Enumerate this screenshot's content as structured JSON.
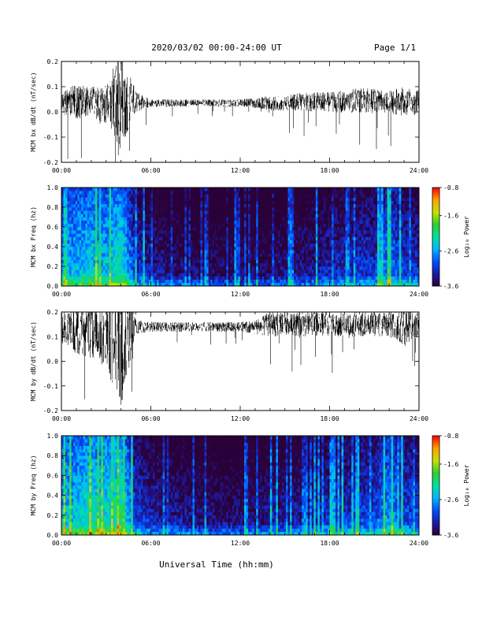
{
  "header": {
    "title": "2020/03/02  00:00-24:00 UT",
    "page_label": "Page 1/1"
  },
  "footer": {
    "xlabel": "Universal Time (hh:mm)"
  },
  "colors": {
    "trace": "#000000",
    "colormap": [
      "#2a0038",
      "#1b1ba8",
      "#0050ff",
      "#00b8ff",
      "#00e0a0",
      "#30d030",
      "#c8e000",
      "#ffa000",
      "#ff0000"
    ]
  },
  "chart_data": [
    {
      "type": "line",
      "ylabel": "MCM bx dB/dt (nT/sec)",
      "xlim": [
        "00:00",
        "24:00"
      ],
      "ylim": [
        -0.2,
        0.2
      ],
      "yticks": [
        "0.2",
        "0.1",
        "0.0",
        "-0.1",
        "-0.2"
      ],
      "xticks": [
        "00:00",
        "06:00",
        "12:00",
        "18:00",
        "24:00"
      ],
      "series": [
        {
          "x": [
            "00:00",
            "01:00",
            "02:00",
            "03:00",
            "04:00",
            "05:00",
            "06:00",
            "07:00",
            "08:00",
            "09:00",
            "10:00",
            "11:00",
            "12:00",
            "13:00",
            "14:00",
            "15:00",
            "16:00",
            "17:00",
            "18:00",
            "19:00",
            "20:00",
            "21:00",
            "22:00",
            "23:00",
            "24:00"
          ],
          "values": [
            0.04,
            0.04,
            0.04,
            0.03,
            0.05,
            0.04,
            0.035,
            0.035,
            0.035,
            0.035,
            0.035,
            0.035,
            0.035,
            0.035,
            0.035,
            0.035,
            0.04,
            0.04,
            0.04,
            0.04,
            0.045,
            0.045,
            0.04,
            0.04,
            0.04
          ],
          "amplitude": [
            0.05,
            0.07,
            0.06,
            0.08,
            0.2,
            0.04,
            0.015,
            0.015,
            0.015,
            0.015,
            0.015,
            0.015,
            0.015,
            0.02,
            0.03,
            0.03,
            0.035,
            0.04,
            0.04,
            0.045,
            0.05,
            0.05,
            0.045,
            0.06,
            0.05
          ]
        }
      ]
    },
    {
      "type": "heatmap",
      "ylabel": "MCM bx Freq (hz)",
      "xlim": [
        "00:00",
        "24:00"
      ],
      "ylim": [
        0.0,
        1.0
      ],
      "yticks": [
        "1.0",
        "0.8",
        "0.6",
        "0.4",
        "0.2",
        "0.0"
      ],
      "xticks": [
        "00:00",
        "06:00",
        "12:00",
        "18:00",
        "24:00"
      ],
      "colorbar": {
        "label": "Log₁₀ Power",
        "ticks": [
          "-0.8",
          "-1.6",
          "-2.6",
          "-3.6"
        ],
        "range": [
          -3.6,
          -0.8
        ]
      },
      "hourly_power": [
        -2.6,
        -2.4,
        -2.3,
        -2.4,
        -2.1,
        -3.0,
        -3.2,
        -3.3,
        -3.3,
        -3.4,
        -3.4,
        -3.4,
        -3.4,
        -3.4,
        -3.4,
        -3.3,
        -3.3,
        -3.2,
        -3.1,
        -3.1,
        -3.0,
        -3.0,
        -2.6,
        -3.0
      ]
    },
    {
      "type": "line",
      "ylabel": "MCM by dB/dt (nT/sec)",
      "xlim": [
        "00:00",
        "24:00"
      ],
      "ylim": [
        -0.2,
        0.2
      ],
      "yticks": [
        "0.2",
        "0.1",
        "0.0",
        "-0.1",
        "-0.2"
      ],
      "xticks": [
        "00:00",
        "06:00",
        "12:00",
        "18:00",
        "24:00"
      ],
      "series": [
        {
          "x": [
            "00:00",
            "01:00",
            "02:00",
            "03:00",
            "04:00",
            "05:00",
            "06:00",
            "07:00",
            "08:00",
            "09:00",
            "10:00",
            "11:00",
            "12:00",
            "13:00",
            "14:00",
            "15:00",
            "16:00",
            "17:00",
            "18:00",
            "19:00",
            "20:00",
            "21:00",
            "22:00",
            "23:00",
            "24:00"
          ],
          "values": [
            0.13,
            0.13,
            0.13,
            0.12,
            0.11,
            0.14,
            0.14,
            0.14,
            0.14,
            0.14,
            0.14,
            0.14,
            0.14,
            0.14,
            0.15,
            0.15,
            0.15,
            0.15,
            0.15,
            0.15,
            0.15,
            0.15,
            0.15,
            0.14,
            0.15
          ],
          "amplitude": [
            0.07,
            0.1,
            0.12,
            0.15,
            0.3,
            0.03,
            0.02,
            0.02,
            0.02,
            0.02,
            0.02,
            0.02,
            0.02,
            0.03,
            0.05,
            0.05,
            0.05,
            0.05,
            0.05,
            0.05,
            0.05,
            0.05,
            0.05,
            0.08,
            0.05
          ]
        }
      ]
    },
    {
      "type": "heatmap",
      "ylabel": "MCM by Freq (hz)",
      "xlim": [
        "00:00",
        "24:00"
      ],
      "ylim": [
        0.0,
        1.0
      ],
      "yticks": [
        "1.0",
        "0.8",
        "0.6",
        "0.4",
        "0.2",
        "0.0"
      ],
      "xticks": [
        "00:00",
        "06:00",
        "12:00",
        "18:00",
        "24:00"
      ],
      "colorbar": {
        "label": "Log₁₀ Power",
        "ticks": [
          "-0.8",
          "-1.6",
          "-2.6",
          "-3.6"
        ],
        "range": [
          -3.6,
          -0.8
        ]
      },
      "hourly_power": [
        -2.4,
        -2.3,
        -2.1,
        -2.2,
        -2.0,
        -2.9,
        -3.1,
        -3.2,
        -3.2,
        -3.3,
        -3.3,
        -3.3,
        -3.3,
        -3.3,
        -3.2,
        -3.2,
        -3.2,
        -3.1,
        -3.0,
        -3.0,
        -2.9,
        -2.9,
        -2.5,
        -2.9
      ]
    }
  ]
}
